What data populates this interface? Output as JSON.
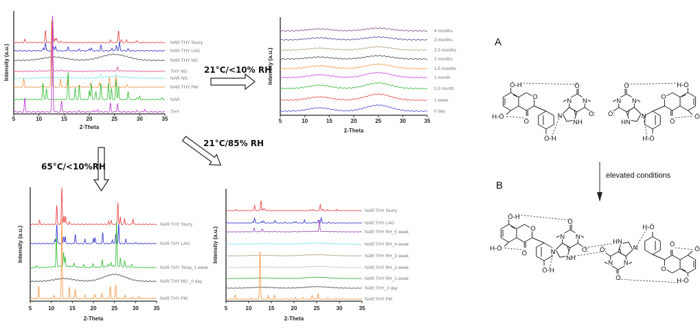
{
  "conditions": {
    "dry_room": "21°C/<10% RH",
    "heat": "65°C/<10%RH",
    "humid": "21°C/85% RH"
  },
  "scheme": {
    "label_a": "A",
    "label_b": "B",
    "arrow_text": "elevated conditions",
    "atom_labels": {
      "oh": "Ö-H",
      "ho": "H-Ö",
      "o": "O",
      "oc": "Ö:",
      "on": "Ö",
      "n": "N",
      "nh": "NH",
      "hn": "HN"
    }
  },
  "chart_data": [
    {
      "type": "line",
      "id": "references",
      "xlabel": "2-Theta",
      "ylabel": "Intensity (a.u.)",
      "xlim": [
        5,
        35
      ],
      "xticks": [
        5,
        10,
        15,
        20,
        25,
        30,
        35
      ],
      "grid": false,
      "legend": "right (labels at end of each trace)",
      "series": [
        {
          "name": "NAR:THY Slurry",
          "color": "#e8474a",
          "halo": [
            0,
            0
          ],
          "peaks": [
            [
              7.2,
              0.12
            ],
            [
              11.3,
              0.45
            ],
            [
              12.7,
              0.9
            ],
            [
              13.2,
              0.15
            ],
            [
              13.5,
              0.15
            ],
            [
              14.3,
              0.06
            ],
            [
              24.2,
              0.1
            ],
            [
              25.8,
              0.45
            ],
            [
              26.4,
              0.1
            ],
            [
              27.4,
              0.1
            ],
            [
              29.4,
              0.08
            ]
          ]
        },
        {
          "name": "NAR:THY LAG",
          "color": "#3a3ad0",
          "halo": [
            0,
            0
          ],
          "peaks": [
            [
              10.9,
              0.1
            ],
            [
              11.3,
              0.3
            ],
            [
              12.9,
              0.15
            ],
            [
              13.3,
              0.15
            ],
            [
              15.8,
              0.15
            ],
            [
              18,
              0.06
            ],
            [
              20,
              0.08
            ],
            [
              20.4,
              0.1
            ],
            [
              22.3,
              0.2
            ],
            [
              24.5,
              0.1
            ],
            [
              25.4,
              0.2
            ],
            [
              26,
              0.3
            ],
            [
              27.7,
              0.06
            ]
          ]
        },
        {
          "name": "NAR:THY NG",
          "color": "#555555",
          "halo": [
            0.12,
            0.22
          ],
          "peaks": []
        },
        {
          "name": "THY NG",
          "color": "#e0559e",
          "halo": [
            0.02,
            0.02
          ],
          "peaks": [
            [
              12.6,
              1.6
            ],
            [
              25.6,
              0.15
            ],
            [
              14.3,
              0.04
            ]
          ]
        },
        {
          "name": "NAR NG",
          "color": "#3fd8e0",
          "halo": [
            0.03,
            0.06
          ],
          "peaks": [
            [
              22.3,
              0.08
            ],
            [
              25.4,
              0.08
            ]
          ]
        },
        {
          "name": "NAR:THY PM",
          "color": "#f59a4a",
          "halo": [
            0,
            0
          ],
          "peaks": [
            [
              7,
              0.3
            ],
            [
              10.8,
              0.08
            ],
            [
              12.5,
              2.4
            ],
            [
              14.3,
              0.3
            ],
            [
              15.7,
              0.3
            ],
            [
              18,
              0.1
            ],
            [
              20.3,
              0.15
            ],
            [
              22,
              0.15
            ],
            [
              24,
              0.35
            ],
            [
              25.3,
              0.4
            ],
            [
              27.5,
              0.08
            ]
          ]
        },
        {
          "name": "NAR",
          "color": "#3cbf3c",
          "halo": [
            0,
            0
          ],
          "peaks": [
            [
              10.8,
              0.6
            ],
            [
              11.5,
              0.4
            ],
            [
              15.8,
              1.0
            ],
            [
              17.2,
              0.4
            ],
            [
              18,
              0.5
            ],
            [
              20,
              0.3
            ],
            [
              20.4,
              0.6
            ],
            [
              21.3,
              0.3
            ],
            [
              22.3,
              0.6
            ],
            [
              23.8,
              0.6
            ],
            [
              24.4,
              0.4
            ],
            [
              25.3,
              0.7
            ],
            [
              25.8,
              0.5
            ],
            [
              27.7,
              0.3
            ],
            [
              30,
              0.12
            ],
            [
              29.5,
              0.08
            ],
            [
              34.5,
              0.06
            ]
          ]
        },
        {
          "name": "THY",
          "color": "#bb3fd0",
          "halo": [
            0,
            0
          ],
          "peaks": [
            [
              7.2,
              0.5
            ],
            [
              12.7,
              3.5
            ],
            [
              14.5,
              0.4
            ],
            [
              18,
              0.04
            ],
            [
              21,
              0.07
            ],
            [
              21.7,
              0.08
            ],
            [
              24.2,
              0.3
            ],
            [
              25.6,
              0.3
            ],
            [
              29.4,
              0.05
            ],
            [
              31,
              0.1
            ]
          ]
        }
      ]
    },
    {
      "type": "line",
      "id": "21C-10RH",
      "xlabel": "2-Theta",
      "ylabel": "Intensity (a.u.)",
      "xlim": [
        5,
        35
      ],
      "xticks": [
        5,
        10,
        15,
        20,
        25,
        30,
        35
      ],
      "grid": false,
      "legend": "right (labels at end of each trace)",
      "series": [
        {
          "name": "4 months",
          "color": "#8a5a8a",
          "halo": [
            0.07,
            0.1
          ],
          "peaks": []
        },
        {
          "name": "3 months",
          "color": "#5656a8",
          "halo": [
            0.07,
            0.1
          ],
          "peaks": []
        },
        {
          "name": "2.5 months",
          "color": "#b5a488",
          "halo": [
            0.07,
            0.12
          ],
          "peaks": []
        },
        {
          "name": "2 months",
          "color": "#555555",
          "halo": [
            0.07,
            0.12
          ],
          "peaks": []
        },
        {
          "name": "1.5 months",
          "color": "#f5a050",
          "halo": [
            0.1,
            0.16
          ],
          "peaks": []
        },
        {
          "name": "1 month",
          "color": "#cc55dd",
          "halo": [
            0.1,
            0.18
          ],
          "peaks": []
        },
        {
          "name": "0.5 month",
          "color": "#44bb44",
          "halo": [
            0.12,
            0.2
          ],
          "peaks": []
        },
        {
          "name": "1 week",
          "color": "#ee5555",
          "halo": [
            0.12,
            0.22
          ],
          "peaks": []
        },
        {
          "name": "0 day",
          "color": "#5555dd",
          "halo": [
            0.12,
            0.22
          ],
          "peaks": []
        }
      ]
    },
    {
      "type": "line",
      "id": "65C-10RH",
      "xlabel": "2-Theta",
      "ylabel": "Intensity (a.u.)",
      "xlim": [
        5,
        35
      ],
      "xticks": [
        5,
        10,
        15,
        20,
        25,
        30,
        35
      ],
      "grid": false,
      "legend": "right (labels at end of each trace)",
      "series": [
        {
          "name": "NAR:THY Slurry",
          "color": "#e8474a",
          "halo": [
            0,
            0
          ],
          "peaks": [
            [
              7.2,
              0.15
            ],
            [
              11.3,
              0.7
            ],
            [
              12.5,
              1.35
            ],
            [
              13,
              0.3
            ],
            [
              13.4,
              0.3
            ],
            [
              14.3,
              0.1
            ],
            [
              23.6,
              0.1
            ],
            [
              24.2,
              0.15
            ],
            [
              25.8,
              0.8
            ],
            [
              26.4,
              0.25
            ],
            [
              27.4,
              0.2
            ],
            [
              29.4,
              0.2
            ]
          ]
        },
        {
          "name": "NAR:THY LAG",
          "color": "#3a3ad0",
          "halo": [
            0,
            0
          ],
          "peaks": [
            [
              10.9,
              0.15
            ],
            [
              11.3,
              0.7
            ],
            [
              12.9,
              0.25
            ],
            [
              13.3,
              0.25
            ],
            [
              15.7,
              0.35
            ],
            [
              18,
              0.15
            ],
            [
              20,
              0.2
            ],
            [
              20.4,
              0.2
            ],
            [
              22.2,
              0.4
            ],
            [
              24.5,
              0.15
            ],
            [
              25.3,
              0.35
            ],
            [
              26,
              0.7
            ],
            [
              27.7,
              0.15
            ],
            [
              30,
              0.05
            ]
          ]
        },
        {
          "name": "NAR:THY Temp_1 week",
          "color": "#3cbf3c",
          "halo": [
            0.05,
            0.05
          ],
          "peaks": [
            [
              6.5,
              0.08
            ],
            [
              11.2,
              1.1
            ],
            [
              12.9,
              0.5
            ],
            [
              13.3,
              0.35
            ],
            [
              15.4,
              0.15
            ],
            [
              17.7,
              0.1
            ],
            [
              19.9,
              0.15
            ],
            [
              22.1,
              0.25
            ],
            [
              23.5,
              0.1
            ],
            [
              24.2,
              0.15
            ],
            [
              25.5,
              1.6
            ],
            [
              26.4,
              0.3
            ],
            [
              27.4,
              0.2
            ],
            [
              29.1,
              0.1
            ]
          ]
        },
        {
          "name": "NAR:THY NG _0 day",
          "color": "#555555",
          "halo": [
            0.1,
            0.25
          ],
          "peaks": []
        },
        {
          "name": "NAR:THY PM",
          "color": "#f59a4a",
          "halo": [
            0,
            0
          ],
          "peaks": [
            [
              7,
              0.45
            ],
            [
              10.6,
              0.1
            ],
            [
              12.5,
              2.9
            ],
            [
              14.3,
              0.4
            ],
            [
              15.7,
              0.35
            ],
            [
              18,
              0.12
            ],
            [
              20.3,
              0.15
            ],
            [
              22,
              0.2
            ],
            [
              24,
              0.45
            ],
            [
              25.3,
              0.5
            ],
            [
              27.5,
              0.12
            ],
            [
              29.2,
              0.06
            ],
            [
              30.8,
              0.08
            ]
          ]
        }
      ]
    },
    {
      "type": "line",
      "id": "21C-85RH",
      "xlabel": "2-Theta",
      "ylabel": "Intensity (a.u.)",
      "xlim": [
        5,
        35
      ],
      "xticks": [
        5,
        10,
        15,
        20,
        25,
        30,
        35
      ],
      "grid": false,
      "legend": "right (labels at end of each trace)",
      "series": [
        {
          "name": "NAR:THY Slurry",
          "color": "#e8474a",
          "halo": [
            0,
            0
          ],
          "peaks": [
            [
              7.2,
              0.1
            ],
            [
              11.3,
              0.45
            ],
            [
              12.7,
              0.8
            ],
            [
              13.2,
              0.15
            ],
            [
              13.5,
              0.15
            ],
            [
              14.3,
              0.06
            ],
            [
              23.6,
              0.08
            ],
            [
              24.2,
              0.1
            ],
            [
              25.8,
              0.5
            ],
            [
              26.4,
              0.1
            ],
            [
              27.4,
              0.1
            ],
            [
              29.4,
              0.12
            ]
          ]
        },
        {
          "name": "NAR:THY LAG",
          "color": "#3a3ad0",
          "halo": [
            0,
            0
          ],
          "peaks": [
            [
              10.9,
              0.1
            ],
            [
              11.3,
              0.4
            ],
            [
              12.9,
              0.15
            ],
            [
              13.3,
              0.15
            ],
            [
              15.8,
              0.2
            ],
            [
              18,
              0.06
            ],
            [
              20,
              0.08
            ],
            [
              20.4,
              0.1
            ],
            [
              22.3,
              0.25
            ],
            [
              24.5,
              0.1
            ],
            [
              25.4,
              0.25
            ],
            [
              26,
              0.4
            ],
            [
              27.7,
              0.06
            ]
          ]
        },
        {
          "name": "NAR:THY RH_5 week",
          "color": "#a050b8",
          "halo": [
            0.02,
            0.04
          ],
          "peaks": [
            [
              11.2,
              0.28
            ],
            [
              13,
              0.22
            ],
            [
              15.5,
              0.04
            ],
            [
              20,
              0.05
            ],
            [
              22.2,
              0.05
            ],
            [
              25.6,
              0.9
            ],
            [
              29,
              0.03
            ]
          ]
        },
        {
          "name": "NAR:THY RH_4 week",
          "color": "#3fd8e0",
          "halo": [
            0.05,
            0.1
          ],
          "peaks": []
        },
        {
          "name": "NAR:THY RH_3 week",
          "color": "#b5a488",
          "halo": [
            0.05,
            0.1
          ],
          "peaks": []
        },
        {
          "name": "NAR:THY RH_2 week",
          "color": "#c8c8c8",
          "halo": [
            0.05,
            0.1
          ],
          "peaks": []
        },
        {
          "name": "NAR:THY RH_1 week",
          "color": "#44aa44",
          "halo": [
            0.05,
            0.1
          ],
          "peaks": []
        },
        {
          "name": "NAR:THY_0 day",
          "color": "#555555",
          "halo": [
            0.07,
            0.12
          ],
          "peaks": []
        },
        {
          "name": "NAR:THY PM",
          "color": "#f59a4a",
          "halo": [
            0,
            0
          ],
          "peaks": [
            [
              7,
              0.35
            ],
            [
              10.6,
              0.08
            ],
            [
              12.5,
              3.9
            ],
            [
              14.3,
              0.3
            ],
            [
              15.7,
              0.3
            ],
            [
              18,
              0.08
            ],
            [
              20.3,
              0.12
            ],
            [
              22,
              0.15
            ],
            [
              24,
              0.3
            ],
            [
              25.3,
              0.45
            ],
            [
              27.5,
              0.1
            ],
            [
              29.2,
              0.05
            ],
            [
              30.8,
              0.06
            ]
          ]
        }
      ]
    }
  ]
}
